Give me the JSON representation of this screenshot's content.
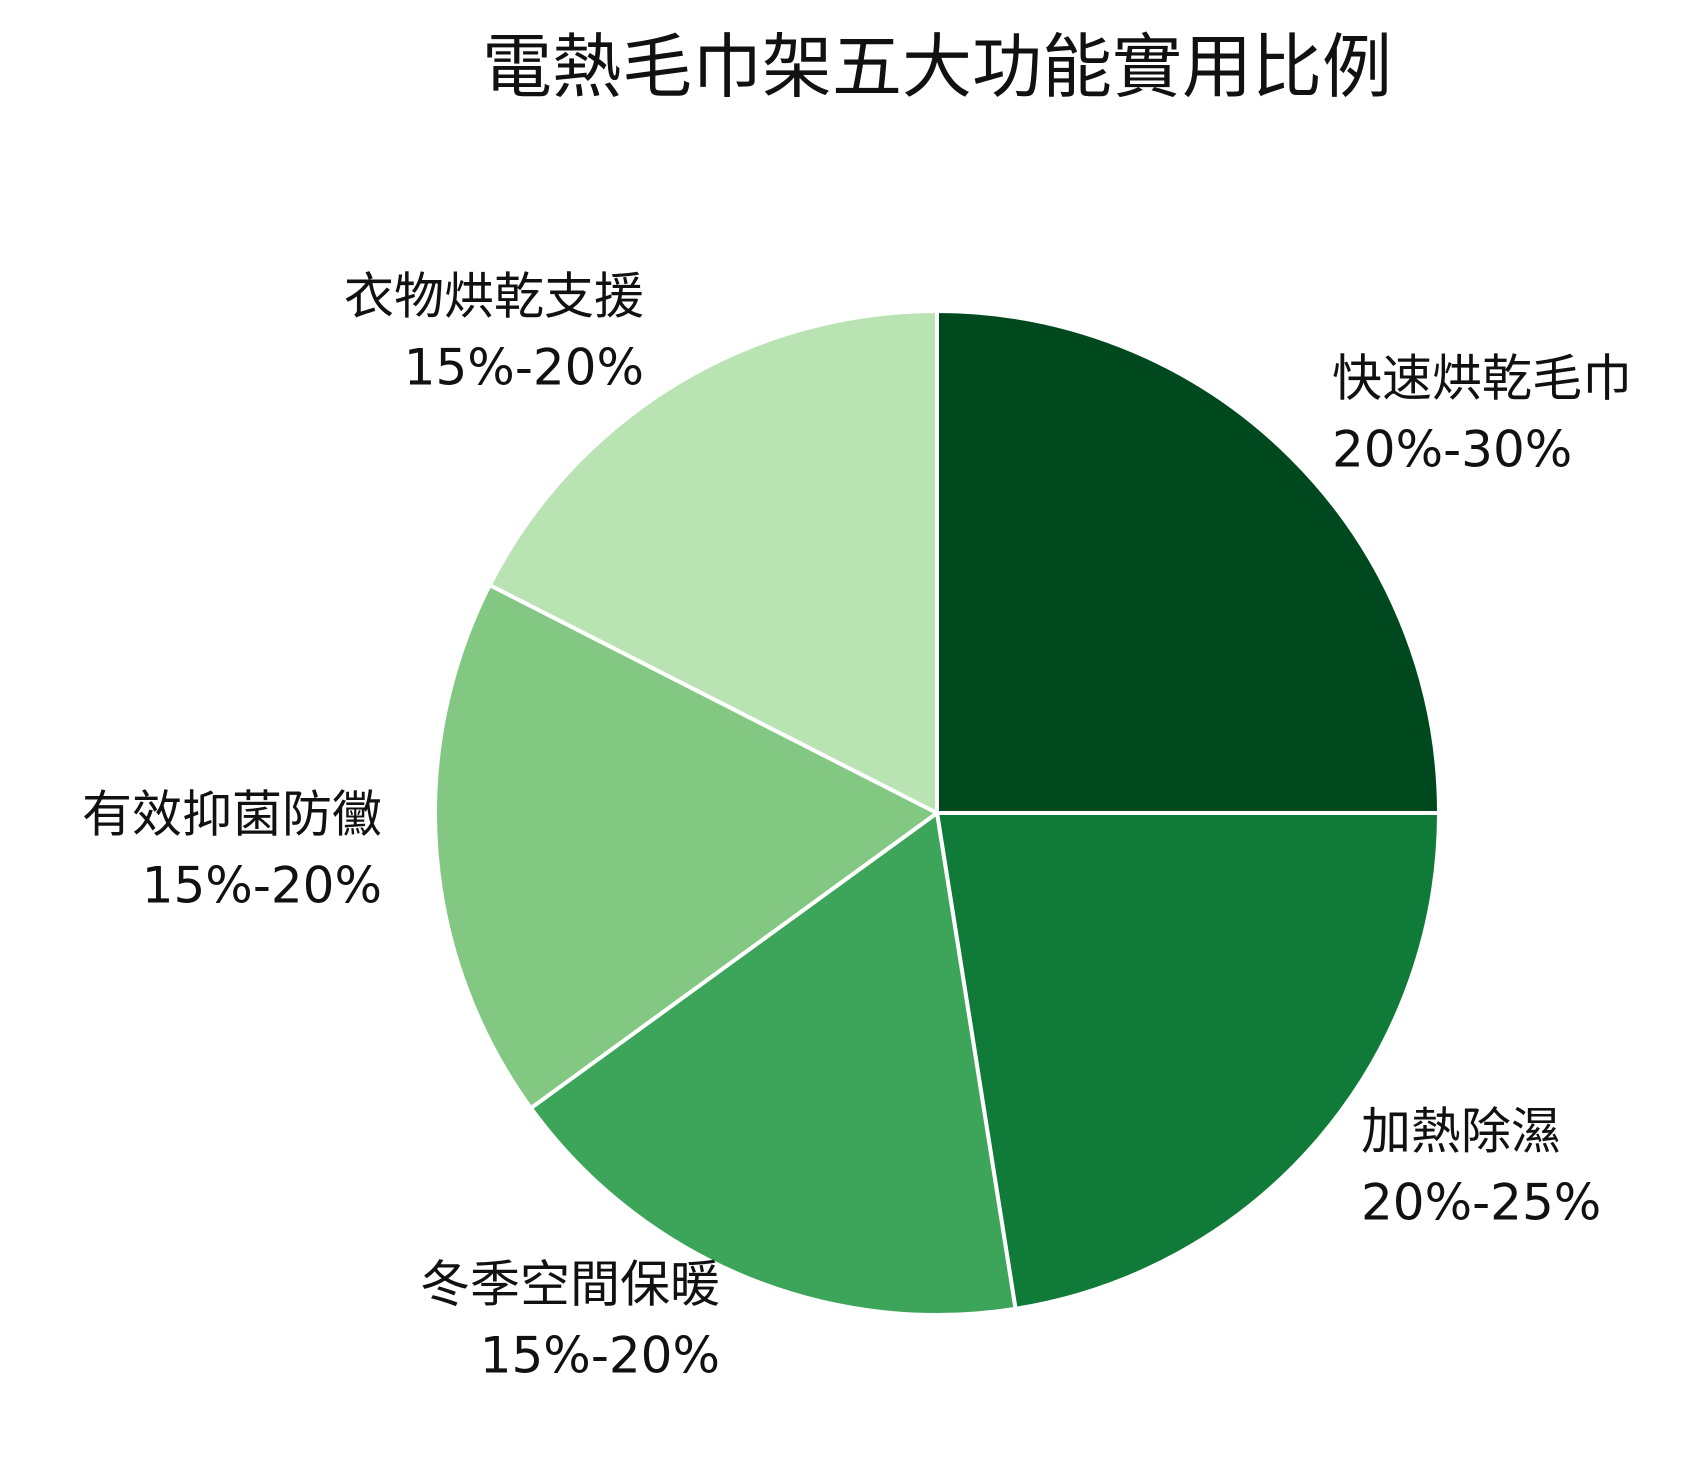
{
  "chart_data": {
    "type": "pie",
    "title": "電熱毛巾架五大功能實用比例",
    "categories": [
      "快速烘乾毛巾",
      "加熱除濕",
      "冬季空間保暖",
      "有效抑菌防黴",
      "衣物烘乾支援"
    ],
    "values": [
      25,
      22.5,
      17.5,
      17.5,
      17.5
    ],
    "value_labels": [
      "20%-30%",
      "20%-25%",
      "15%-20%",
      "15%-20%",
      "15%-20%"
    ],
    "colors": [
      "#00491e",
      "#107a38",
      "#3da55a",
      "#82c882",
      "#b9e3b3"
    ]
  }
}
